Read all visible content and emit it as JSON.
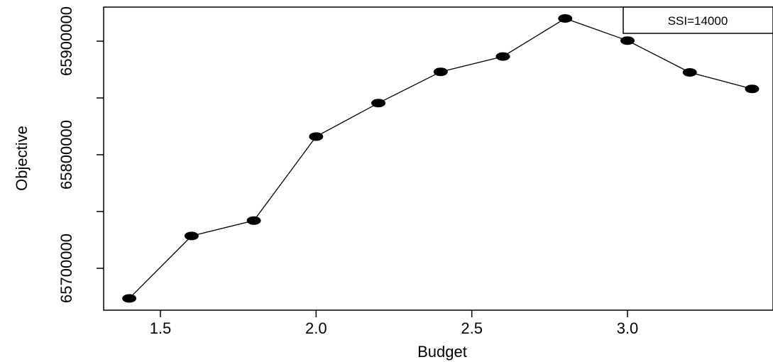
{
  "chart_data": {
    "type": "line",
    "title": "",
    "xlabel": "Budget",
    "ylabel": "Objective",
    "xlim": [
      1.35,
      3.45
    ],
    "ylim": [
      65673500,
      65930000
    ],
    "x_ticks": [
      1.5,
      2.0,
      2.5,
      3.0
    ],
    "x_tick_labels": [
      "1.5",
      "2.0",
      "2.5",
      "3.0"
    ],
    "y_ticks": [
      65700000,
      65750000,
      65800000,
      65850000,
      65900000
    ],
    "y_tick_labels": [
      "65700000",
      "",
      "65800000",
      "",
      "65900000"
    ],
    "grid": false,
    "legend_position": "top-right",
    "series": [
      {
        "name": "SSI=14000",
        "x": [
          1.4,
          1.6,
          1.8,
          2.0,
          2.2,
          2.4,
          2.6,
          2.8,
          3.0,
          3.2,
          3.4
        ],
        "y": [
          65673500,
          65728500,
          65742000,
          65816000,
          65845500,
          65873000,
          65886500,
          65920000,
          65900500,
          65872500,
          65858000
        ]
      }
    ]
  }
}
